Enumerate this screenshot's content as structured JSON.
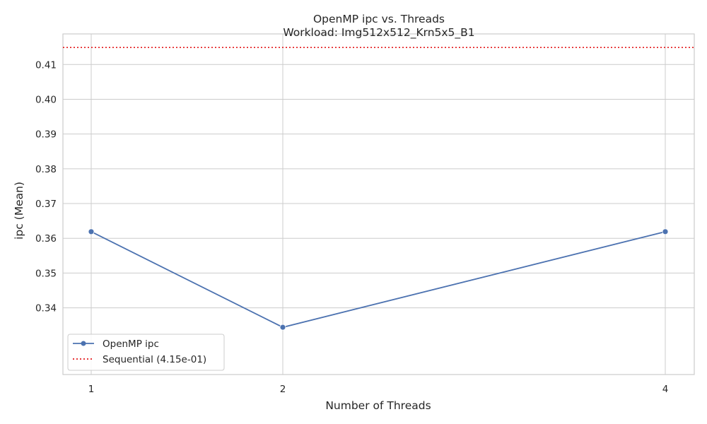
{
  "chart_data": {
    "type": "line",
    "title": "OpenMP ipc vs. Threads",
    "subtitle": "Workload: Img512x512_Krn5x5_B1",
    "xlabel": "Number of Threads",
    "ylabel": "ipc (Mean)",
    "x": [
      1,
      2,
      4
    ],
    "xtick_labels": [
      "1",
      "2",
      "4"
    ],
    "ylim": [
      0.3208,
      0.4188
    ],
    "yticks": [
      0.34,
      0.35,
      0.36,
      0.37,
      0.38,
      0.39,
      0.4,
      0.41
    ],
    "ytick_labels": [
      "0.34",
      "0.35",
      "0.36",
      "0.37",
      "0.38",
      "0.39",
      "0.40",
      "0.41"
    ],
    "grid": true,
    "legend_position": "lower-left",
    "series": [
      {
        "name": "OpenMP ipc",
        "values": [
          0.3619,
          0.3344,
          0.3619
        ],
        "color": "#4c72b0",
        "marker": "circle",
        "line_style": "solid"
      }
    ],
    "reference_lines": [
      {
        "name": "Sequential (4.15e-01)",
        "value": 0.4149,
        "color": "#e41a1c",
        "line_style": "dotted"
      }
    ]
  }
}
